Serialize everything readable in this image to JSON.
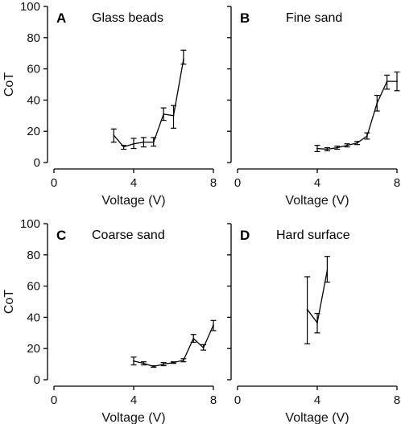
{
  "chart_data": [
    {
      "type": "line",
      "panel": "A",
      "title": "Glass beads",
      "xlabel": "Voltage (V)",
      "ylabel": "CoT",
      "xlim": [
        0,
        8
      ],
      "ylim": [
        0,
        100
      ],
      "xticks": [
        0,
        4,
        8
      ],
      "yticks": [
        0,
        20,
        40,
        60,
        80,
        100
      ],
      "show_xlabel": true,
      "show_ylabel": true,
      "show_ytick_labels": true,
      "series": [
        {
          "points": [
            {
              "x": 3.0,
              "y": 17.5,
              "lo": 13,
              "hi": 21.5
            },
            {
              "x": 3.5,
              "y": 10,
              "lo": 8.5,
              "hi": 11
            },
            {
              "x": 4.0,
              "y": 12,
              "lo": 9,
              "hi": 15.5
            },
            {
              "x": 4.5,
              "y": 13,
              "lo": 10,
              "hi": 16
            },
            {
              "x": 5.0,
              "y": 13,
              "lo": 10.5,
              "hi": 16
            },
            {
              "x": 5.5,
              "y": 31,
              "lo": 27,
              "hi": 35
            },
            {
              "x": 6.0,
              "y": 30,
              "lo": 22,
              "hi": 36.5
            },
            {
              "x": 6.5,
              "y": 66,
              "lo": 63,
              "hi": 72
            }
          ]
        }
      ]
    },
    {
      "type": "line",
      "panel": "B",
      "title": "Fine sand",
      "xlabel": "Voltage (V)",
      "ylabel": "",
      "xlim": [
        0,
        8
      ],
      "ylim": [
        0,
        100
      ],
      "xticks": [
        0,
        4,
        8
      ],
      "yticks": [
        0,
        20,
        40,
        60,
        80,
        100
      ],
      "show_xlabel": true,
      "show_ylabel": false,
      "show_ytick_labels": false,
      "series": [
        {
          "points": [
            {
              "x": 4.0,
              "y": 9,
              "lo": 7,
              "hi": 11
            },
            {
              "x": 4.5,
              "y": 8.5,
              "lo": 7.5,
              "hi": 9.5
            },
            {
              "x": 5.0,
              "y": 9.5,
              "lo": 8.5,
              "hi": 10.5
            },
            {
              "x": 5.5,
              "y": 11,
              "lo": 10,
              "hi": 12
            },
            {
              "x": 6.0,
              "y": 12.5,
              "lo": 11.5,
              "hi": 13.5
            },
            {
              "x": 6.5,
              "y": 17,
              "lo": 15,
              "hi": 19
            },
            {
              "x": 7.0,
              "y": 38,
              "lo": 33,
              "hi": 43
            },
            {
              "x": 7.5,
              "y": 52,
              "lo": 47,
              "hi": 56
            },
            {
              "x": 8.0,
              "y": 52,
              "lo": 46,
              "hi": 58
            }
          ]
        }
      ]
    },
    {
      "type": "line",
      "panel": "C",
      "title": "Coarse sand",
      "xlabel": "Voltage (V)",
      "ylabel": "CoT",
      "xlim": [
        0,
        8
      ],
      "ylim": [
        0,
        100
      ],
      "xticks": [
        0,
        4,
        8
      ],
      "yticks": [
        0,
        20,
        40,
        60,
        80,
        100
      ],
      "show_xlabel": true,
      "show_ylabel": true,
      "show_ytick_labels": true,
      "series": [
        {
          "points": [
            {
              "x": 4.0,
              "y": 12,
              "lo": 9.5,
              "hi": 14.5
            },
            {
              "x": 4.5,
              "y": 10.5,
              "lo": 9.5,
              "hi": 11.5
            },
            {
              "x": 5.0,
              "y": 8.5,
              "lo": 8,
              "hi": 9
            },
            {
              "x": 5.5,
              "y": 10,
              "lo": 9,
              "hi": 11
            },
            {
              "x": 6.0,
              "y": 11,
              "lo": 10.5,
              "hi": 11.5
            },
            {
              "x": 6.5,
              "y": 12.5,
              "lo": 11.5,
              "hi": 13.5
            },
            {
              "x": 7.0,
              "y": 26.5,
              "lo": 24,
              "hi": 29
            },
            {
              "x": 7.5,
              "y": 20.5,
              "lo": 19,
              "hi": 22.5
            },
            {
              "x": 8.0,
              "y": 35,
              "lo": 31.5,
              "hi": 38
            }
          ]
        }
      ]
    },
    {
      "type": "line",
      "panel": "D",
      "title": "Hard surface",
      "xlabel": "Voltage (V)",
      "ylabel": "",
      "xlim": [
        0,
        8
      ],
      "ylim": [
        0,
        100
      ],
      "xticks": [
        0,
        4,
        8
      ],
      "yticks": [
        0,
        20,
        40,
        60,
        80,
        100
      ],
      "show_xlabel": true,
      "show_ylabel": false,
      "show_ytick_labels": false,
      "series": [
        {
          "points": [
            {
              "x": 3.5,
              "y": 45,
              "lo": 23,
              "hi": 66
            },
            {
              "x": 4.0,
              "y": 36.5,
              "lo": 30,
              "hi": 42.5
            },
            {
              "x": 4.5,
              "y": 70,
              "lo": 62.5,
              "hi": 79
            }
          ]
        }
      ]
    }
  ]
}
